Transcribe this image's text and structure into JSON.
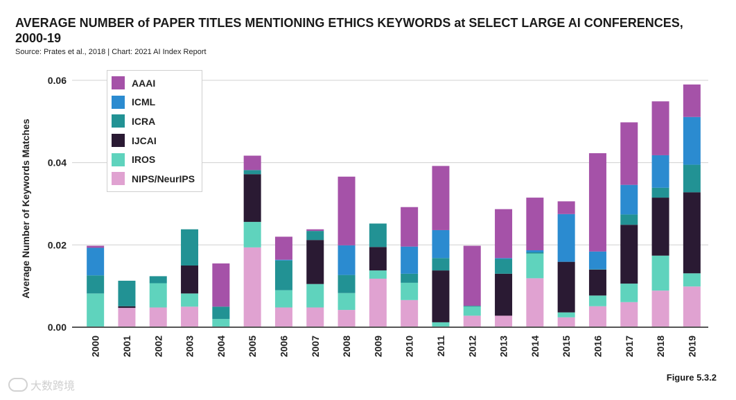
{
  "header": {
    "title": "AVERAGE NUMBER of PAPER TITLES MENTIONING ETHICS KEYWORDS at SELECT LARGE AI CONFERENCES, 2000-19",
    "source": "Source: Prates et al., 2018 | Chart: 2021 AI Index Report"
  },
  "footer": {
    "figure_label": "Figure 5.3.2",
    "watermark": "大数跨境"
  },
  "colors": {
    "AAAI": "#a552a8",
    "ICML": "#2b8bd0",
    "ICRA": "#229294",
    "IJCAI": "#2a1a33",
    "IROS": "#5fd3bd",
    "NIPS/NeurIPS": "#e0a2d1"
  },
  "chart_data": {
    "type": "bar",
    "stacked": true,
    "ylabel": "Average Number of Keywords Matches",
    "xlabel": "",
    "ylim": [
      0,
      0.061
    ],
    "yticks": [
      "0.00",
      "0.02",
      "0.04",
      "0.06"
    ],
    "ytick_values": [
      0,
      0.02,
      0.04,
      0.06
    ],
    "grid": true,
    "legend_position": "top-left",
    "categories": [
      "2000",
      "2001",
      "2002",
      "2003",
      "2004",
      "2005",
      "2006",
      "2007",
      "2008",
      "2009",
      "2010",
      "2011",
      "2012",
      "2013",
      "2014",
      "2015",
      "2016",
      "2017",
      "2018",
      "2019"
    ],
    "series": [
      {
        "name": "NIPS/NeurIPS",
        "values": [
          0,
          0.0047,
          0.0048,
          0.005,
          0,
          0.0194,
          0.0048,
          0.0048,
          0.0042,
          0.0118,
          0.0066,
          0,
          0.0028,
          0.0028,
          0.0119,
          0.0024,
          0.0051,
          0.0061,
          0.0089,
          0.0099
        ]
      },
      {
        "name": "IROS",
        "values": [
          0.0082,
          0,
          0.0059,
          0.0032,
          0.002,
          0.0062,
          0.0042,
          0.0057,
          0.0041,
          0.002,
          0.0042,
          0.0012,
          0.0022,
          0,
          0.006,
          0.0012,
          0.0026,
          0.0045,
          0.0085,
          0.0032
        ]
      },
      {
        "name": "IJCAI",
        "values": [
          0,
          0.0004,
          0,
          0.0068,
          0,
          0.0116,
          0,
          0.0107,
          0,
          0.0057,
          0,
          0.0126,
          0,
          0.0102,
          0,
          0.0123,
          0.0063,
          0.0143,
          0.0141,
          0.0197
        ]
      },
      {
        "name": "ICRA",
        "values": [
          0.0044,
          0.0062,
          0.0017,
          0.0088,
          0.003,
          0.001,
          0.0072,
          0.0022,
          0.0044,
          0.0057,
          0.0022,
          0.003,
          0.0002,
          0.0036,
          0.0003,
          0,
          0.0001,
          0.0025,
          0.0024,
          0.0067
        ]
      },
      {
        "name": "ICML",
        "values": [
          0.0067,
          0,
          0,
          0,
          0,
          0,
          0.0002,
          0,
          0.0072,
          0,
          0.0066,
          0.0068,
          0,
          0.0002,
          0.0005,
          0.0116,
          0.0043,
          0.0072,
          0.0079,
          0.0116
        ]
      },
      {
        "name": "AAAI",
        "values": [
          0.0005,
          0,
          0,
          0,
          0.0105,
          0.0035,
          0.0056,
          0.0004,
          0.0167,
          0,
          0.0096,
          0.0156,
          0.0146,
          0.0119,
          0.0128,
          0.0031,
          0.0239,
          0.0152,
          0.0131,
          0.0079
        ]
      }
    ]
  }
}
